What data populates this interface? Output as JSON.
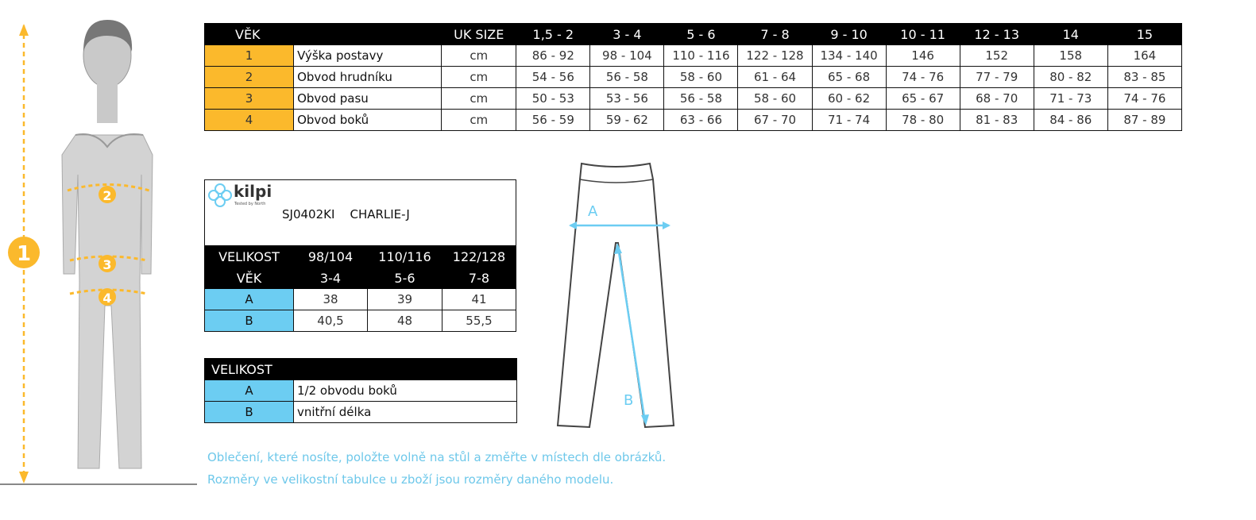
{
  "size_table": {
    "header": [
      "VĚK",
      "",
      "UK SIZE",
      "1,5 - 2",
      "3 - 4",
      "5 - 6",
      "7 - 8",
      "9 - 10",
      "10 - 11",
      "12 - 13",
      "14",
      "15"
    ],
    "rows": [
      [
        "1",
        "Výška postavy",
        "cm",
        "86 - 92",
        "98 - 104",
        "110 - 116",
        "122 - 128",
        "134 - 140",
        "146",
        "152",
        "158",
        "164"
      ],
      [
        "2",
        "Obvod hrudníku",
        "cm",
        "54 - 56",
        "56 - 58",
        "58 - 60",
        "61 - 64",
        "65 - 68",
        "74 - 76",
        "77 - 79",
        "80 - 82",
        "83 - 85"
      ],
      [
        "3",
        "Obvod pasu",
        "cm",
        "50 - 53",
        "53 - 56",
        "56 - 58",
        "58 - 60",
        "60 - 62",
        "65 - 67",
        "68 - 70",
        "71 - 73",
        "74 - 76"
      ],
      [
        "4",
        "Obvod boků",
        "cm",
        "56 - 59",
        "59 - 62",
        "63 - 66",
        "67 - 70",
        "71 - 74",
        "78 - 80",
        "81 - 83",
        "84 - 86",
        "87 - 89"
      ]
    ]
  },
  "product": {
    "brand": "kilpi",
    "tagline": "Tested by North",
    "code": "SJ0402KI",
    "name": "CHARLIE-J",
    "header1": [
      "VELIKOST",
      "98/104",
      "110/116",
      "122/128"
    ],
    "header2": [
      "VĚK",
      "3-4",
      "5-6",
      "7-8"
    ],
    "rows": [
      [
        "A",
        "38",
        "39",
        "41"
      ],
      [
        "B",
        "40,5",
        "48",
        "55,5"
      ]
    ]
  },
  "legend": {
    "header": "VELIKOST",
    "rows": [
      [
        "A",
        "1/2 obvodu boků"
      ],
      [
        "B",
        "vnitřní délka"
      ]
    ]
  },
  "figure": {
    "markers": [
      "1",
      "2",
      "3",
      "4"
    ]
  },
  "pants": {
    "labels": [
      "A",
      "B"
    ]
  },
  "notes": [
    "Oblečení, které nosíte, položte volně na stůl a změřte v místech dle obrázků.",
    "Rozměry ve velikostní tabulce u zboží jsou rozměry daného modelu."
  ],
  "colors": {
    "orange": "#fbb92c",
    "blue": "#6ccdf2",
    "note": "#6ec8ea"
  }
}
